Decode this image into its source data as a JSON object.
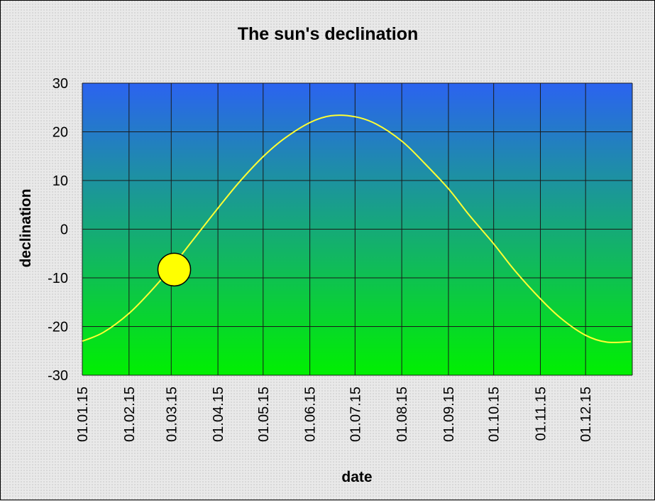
{
  "chart_data": {
    "type": "line",
    "title": "The sun's declination",
    "xlabel": "date",
    "ylabel": "declination",
    "x_ticks": [
      "01.01.15",
      "01.02.15",
      "01.03.15",
      "01.04.15",
      "01.05.15",
      "01.06.15",
      "01.07.15",
      "01.08.15",
      "01.09.15",
      "01.10.15",
      "01.11.15",
      "01.12.15"
    ],
    "y_ticks": [
      30,
      20,
      10,
      0,
      -10,
      -20,
      -30
    ],
    "xlim": [
      "2015-01-01",
      "2015-12-31"
    ],
    "ylim": [
      -30,
      30
    ],
    "grid": true,
    "legend": "none",
    "series": [
      {
        "x": [
          "2015-01-01",
          "2015-01-15",
          "2015-02-01",
          "2015-02-15",
          "2015-03-01",
          "2015-03-15",
          "2015-04-01",
          "2015-04-15",
          "2015-05-01",
          "2015-05-15",
          "2015-06-01",
          "2015-06-15",
          "2015-07-01",
          "2015-07-15",
          "2015-08-01",
          "2015-08-15",
          "2015-09-01",
          "2015-09-15",
          "2015-10-01",
          "2015-10-15",
          "2015-11-01",
          "2015-11-15",
          "2015-12-01",
          "2015-12-15",
          "2015-12-31"
        ],
        "values": [
          -23.0,
          -21.2,
          -17.3,
          -12.9,
          -7.9,
          -2.4,
          4.3,
          9.6,
          14.9,
          18.6,
          21.9,
          23.3,
          23.1,
          21.6,
          18.1,
          13.9,
          8.3,
          2.8,
          -3.0,
          -8.5,
          -14.3,
          -18.4,
          -21.8,
          -23.2,
          -23.1
        ],
        "color": "#ffff33"
      }
    ],
    "marker": {
      "label": "sun",
      "date": "2015-03-03",
      "value": -8.3,
      "color": "#ffff00"
    },
    "background_gradient": {
      "top": "#2b63f0",
      "bottom": "#00f000"
    }
  }
}
